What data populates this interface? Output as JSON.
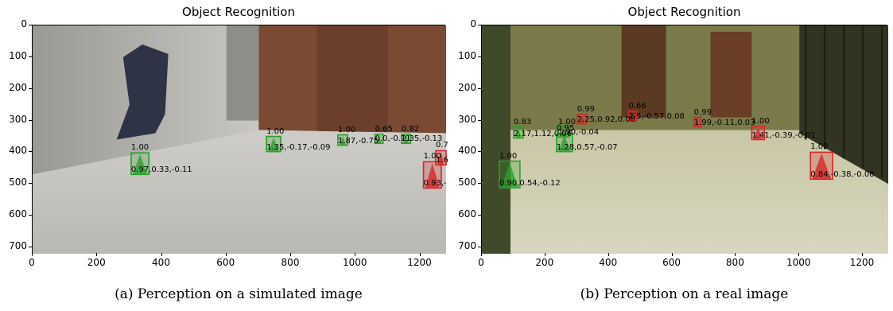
{
  "panels": [
    {
      "title": "Object Recognition",
      "caption": "(a) Perception on a simulated image",
      "scene": "sim",
      "y_ticks": [
        "0",
        "100",
        "200",
        "300",
        "400",
        "500",
        "600",
        "700"
      ],
      "x_ticks": [
        "0",
        "200",
        "400",
        "600",
        "800",
        "1000",
        "1200"
      ],
      "detections": [
        {
          "score": "1.00",
          "pose": "0.97,0.33,-0.11",
          "color": "#2aa02a",
          "x": [
            305,
            360
          ],
          "y": [
            402,
            470
          ]
        },
        {
          "score": "1.00",
          "pose": "1.35,-0.17,-0.09",
          "color": "#2aa02a",
          "x": [
            724,
            768
          ],
          "y": [
            350,
            398
          ]
        },
        {
          "score": "1.00",
          "pose": "1.87,-0.75",
          "color": "#2aa02a",
          "x": [
            945,
            975
          ],
          "y": [
            345,
            378
          ]
        },
        {
          "score": "0.65",
          "pose": "0.0,-0.11",
          "color": "#2aa02a",
          "x": [
            1060,
            1085
          ],
          "y": [
            343,
            372
          ]
        },
        {
          "score": "0.82",
          "pose": "2.35,-0.13",
          "color": "#2aa02a",
          "x": [
            1142,
            1170
          ],
          "y": [
            343,
            372
          ]
        },
        {
          "score": "1.00",
          "pose": "0.93,-",
          "color": "#d62728",
          "x": [
            1210,
            1265
          ],
          "y": [
            430,
            513
          ]
        },
        {
          "score": "0.7",
          "pose": "1.6",
          "color": "#d62728",
          "x": [
            1248,
            1280
          ],
          "y": [
            395,
            440
          ]
        }
      ]
    },
    {
      "title": "Object Recognition",
      "caption": "(b) Perception on a real image",
      "scene": "real",
      "y_ticks": [
        "0",
        "100",
        "200",
        "300",
        "400",
        "500",
        "600",
        "700"
      ],
      "x_ticks": [
        "0",
        "200",
        "400",
        "600",
        "800",
        "1000",
        "1200"
      ],
      "detections": [
        {
          "score": "1.00",
          "pose": "0.90,0.54,-0.12",
          "color": "#2aa02a",
          "x": [
            55,
            120
          ],
          "y": [
            428,
            512
          ]
        },
        {
          "score": "0.95",
          "pose": "1.28,0.57,-0.07",
          "color": "#2aa02a",
          "x": [
            235,
            285
          ],
          "y": [
            342,
            398
          ]
        },
        {
          "score": "0.83",
          "pose": "2.17,1.12,0.06",
          "color": "#2aa02a",
          "x": [
            100,
            130
          ],
          "y": [
            320,
            355
          ]
        },
        {
          "score": "1.00",
          "pose": "1.90,-0.04",
          "color": "#2aa02a",
          "x": [
            240,
            275
          ],
          "y": [
            320,
            352
          ]
        },
        {
          "score": "0.99",
          "pose": "2.25,0.92,0.08",
          "color": "#d62728",
          "x": [
            300,
            330
          ],
          "y": [
            280,
            310
          ]
        },
        {
          "score": "0.66",
          "pose": "2.5,-0.57,0.08",
          "color": "#d62728",
          "x": [
            462,
            488
          ],
          "y": [
            270,
            300
          ]
        },
        {
          "score": "0.99",
          "pose": "1.99,-0.11,0.03",
          "color": "#d62728",
          "x": [
            668,
            690
          ],
          "y": [
            290,
            320
          ]
        },
        {
          "score": "1.00",
          "pose": "1.41,-0.39,-0.01",
          "color": "#d62728",
          "x": [
            850,
            890
          ],
          "y": [
            318,
            360
          ]
        },
        {
          "score": "1.00",
          "pose": "0.84,-0.38,-0.08",
          "color": "#d62728",
          "x": [
            1035,
            1105
          ],
          "y": [
            400,
            485
          ]
        }
      ]
    }
  ]
}
